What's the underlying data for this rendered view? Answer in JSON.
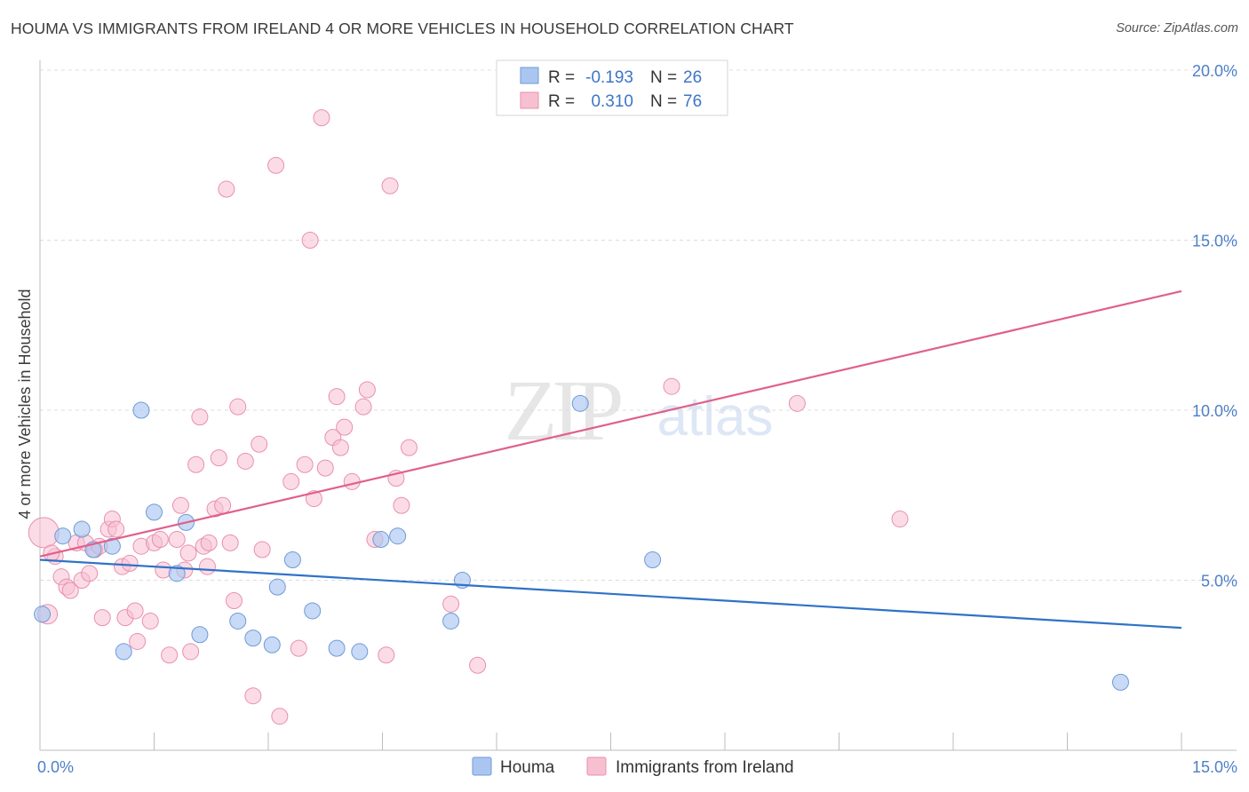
{
  "header": {
    "title": "HOUMA VS IMMIGRANTS FROM IRELAND 4 OR MORE VEHICLES IN HOUSEHOLD CORRELATION CHART",
    "source": "Source: ZipAtlas.com"
  },
  "watermark": {
    "zip": "ZIP",
    "atlas": "atlas"
  },
  "legend_top": {
    "rows": [
      {
        "r_label": "R =",
        "r_value": "-0.193",
        "n_label": "N =",
        "n_value": "26"
      },
      {
        "r_label": "R =",
        "r_value": "0.310",
        "n_label": "N =",
        "n_value": "76"
      }
    ]
  },
  "legend_bottom": {
    "items": [
      "Houma",
      "Immigrants from Ireland"
    ]
  },
  "colors": {
    "houma_fill": "#aac6f0",
    "houma_stroke": "#6f9ad9",
    "houma_line": "#2f72c8",
    "ireland_fill": "#f7c0d1",
    "ireland_stroke": "#e98fae",
    "ireland_line": "#e0608a",
    "tick": "#4d7fc9",
    "grid": "#dcdcdc"
  },
  "chart_data": {
    "type": "scatter",
    "title": "HOUMA VS IMMIGRANTS FROM IRELAND 4 OR MORE VEHICLES IN HOUSEHOLD CORRELATION CHART",
    "xlabel": "",
    "ylabel": "4 or more Vehicles in Household",
    "xlim": [
      0,
      15
    ],
    "ylim": [
      0,
      20
    ],
    "x_ticks": [
      "0.0%",
      "15.0%"
    ],
    "y_ticks": [
      "5.0%",
      "10.0%",
      "15.0%",
      "20.0%"
    ],
    "y_tick_values": [
      5,
      10,
      15,
      20
    ],
    "grid": true,
    "legend_position": "top-center",
    "series": [
      {
        "name": "Houma",
        "r": -0.193,
        "n": 26,
        "trend": {
          "x": [
            0,
            15
          ],
          "y": [
            5.6,
            3.6
          ]
        },
        "points": [
          {
            "x": 0.03,
            "y": 4.0
          },
          {
            "x": 0.3,
            "y": 6.3
          },
          {
            "x": 0.55,
            "y": 6.5
          },
          {
            "x": 0.7,
            "y": 5.9
          },
          {
            "x": 0.95,
            "y": 6.0
          },
          {
            "x": 1.1,
            "y": 2.9
          },
          {
            "x": 1.33,
            "y": 10.0
          },
          {
            "x": 1.5,
            "y": 7.0
          },
          {
            "x": 1.8,
            "y": 5.2
          },
          {
            "x": 1.92,
            "y": 6.7
          },
          {
            "x": 2.1,
            "y": 3.4
          },
          {
            "x": 2.6,
            "y": 3.8
          },
          {
            "x": 2.8,
            "y": 3.3
          },
          {
            "x": 3.05,
            "y": 3.1
          },
          {
            "x": 3.12,
            "y": 4.8
          },
          {
            "x": 3.32,
            "y": 5.6
          },
          {
            "x": 3.58,
            "y": 4.1
          },
          {
            "x": 3.9,
            "y": 3.0
          },
          {
            "x": 4.2,
            "y": 2.9
          },
          {
            "x": 4.48,
            "y": 6.2
          },
          {
            "x": 4.7,
            "y": 6.3
          },
          {
            "x": 5.4,
            "y": 3.8
          },
          {
            "x": 5.55,
            "y": 5.0
          },
          {
            "x": 7.1,
            "y": 10.2
          },
          {
            "x": 8.05,
            "y": 5.6
          },
          {
            "x": 14.2,
            "y": 2.0
          }
        ]
      },
      {
        "name": "Immigrants from Ireland",
        "r": 0.31,
        "n": 76,
        "trend": {
          "x": [
            0,
            15
          ],
          "y": [
            5.7,
            13.5
          ]
        },
        "points": [
          {
            "x": 0.05,
            "y": 6.4
          },
          {
            "x": 0.1,
            "y": 4.0
          },
          {
            "x": 0.2,
            "y": 5.7
          },
          {
            "x": 0.28,
            "y": 5.1
          },
          {
            "x": 0.35,
            "y": 4.8
          },
          {
            "x": 0.4,
            "y": 4.7
          },
          {
            "x": 0.48,
            "y": 6.1
          },
          {
            "x": 0.55,
            "y": 5.0
          },
          {
            "x": 0.6,
            "y": 6.1
          },
          {
            "x": 0.65,
            "y": 5.2
          },
          {
            "x": 0.72,
            "y": 5.9
          },
          {
            "x": 0.82,
            "y": 3.9
          },
          {
            "x": 0.9,
            "y": 6.5
          },
          {
            "x": 0.95,
            "y": 6.8
          },
          {
            "x": 1.0,
            "y": 6.5
          },
          {
            "x": 1.08,
            "y": 5.4
          },
          {
            "x": 1.12,
            "y": 3.9
          },
          {
            "x": 1.18,
            "y": 5.5
          },
          {
            "x": 1.25,
            "y": 4.1
          },
          {
            "x": 1.28,
            "y": 3.2
          },
          {
            "x": 1.33,
            "y": 6.0
          },
          {
            "x": 1.45,
            "y": 3.8
          },
          {
            "x": 1.5,
            "y": 6.1
          },
          {
            "x": 1.58,
            "y": 6.2
          },
          {
            "x": 1.62,
            "y": 5.3
          },
          {
            "x": 1.7,
            "y": 2.8
          },
          {
            "x": 1.8,
            "y": 6.2
          },
          {
            "x": 1.85,
            "y": 7.2
          },
          {
            "x": 1.9,
            "y": 5.3
          },
          {
            "x": 1.98,
            "y": 2.9
          },
          {
            "x": 2.05,
            "y": 8.4
          },
          {
            "x": 2.1,
            "y": 9.8
          },
          {
            "x": 2.15,
            "y": 6.0
          },
          {
            "x": 2.2,
            "y": 5.4
          },
          {
            "x": 2.3,
            "y": 7.1
          },
          {
            "x": 2.35,
            "y": 8.6
          },
          {
            "x": 2.4,
            "y": 7.2
          },
          {
            "x": 2.45,
            "y": 16.5
          },
          {
            "x": 2.5,
            "y": 6.1
          },
          {
            "x": 2.55,
            "y": 4.4
          },
          {
            "x": 2.6,
            "y": 10.1
          },
          {
            "x": 2.7,
            "y": 8.5
          },
          {
            "x": 2.8,
            "y": 1.6
          },
          {
            "x": 2.88,
            "y": 9.0
          },
          {
            "x": 2.92,
            "y": 5.9
          },
          {
            "x": 3.1,
            "y": 17.2
          },
          {
            "x": 3.15,
            "y": 1.0
          },
          {
            "x": 3.3,
            "y": 7.9
          },
          {
            "x": 3.4,
            "y": 3.0
          },
          {
            "x": 3.48,
            "y": 8.4
          },
          {
            "x": 3.55,
            "y": 15.0
          },
          {
            "x": 3.6,
            "y": 7.4
          },
          {
            "x": 3.7,
            "y": 18.6
          },
          {
            "x": 3.75,
            "y": 8.3
          },
          {
            "x": 3.85,
            "y": 9.2
          },
          {
            "x": 3.9,
            "y": 10.4
          },
          {
            "x": 3.95,
            "y": 8.9
          },
          {
            "x": 4.0,
            "y": 9.5
          },
          {
            "x": 4.1,
            "y": 7.9
          },
          {
            "x": 4.25,
            "y": 10.1
          },
          {
            "x": 4.3,
            "y": 10.6
          },
          {
            "x": 4.4,
            "y": 6.2
          },
          {
            "x": 4.55,
            "y": 2.8
          },
          {
            "x": 4.6,
            "y": 16.6
          },
          {
            "x": 4.68,
            "y": 8.0
          },
          {
            "x": 4.75,
            "y": 7.2
          },
          {
            "x": 4.85,
            "y": 8.9
          },
          {
            "x": 5.4,
            "y": 4.3
          },
          {
            "x": 5.75,
            "y": 2.5
          },
          {
            "x": 8.3,
            "y": 10.7
          },
          {
            "x": 9.95,
            "y": 10.2
          },
          {
            "x": 11.3,
            "y": 6.8
          },
          {
            "x": 0.15,
            "y": 5.8
          },
          {
            "x": 0.78,
            "y": 6.0
          },
          {
            "x": 1.95,
            "y": 5.8
          },
          {
            "x": 2.22,
            "y": 6.1
          }
        ]
      }
    ]
  }
}
